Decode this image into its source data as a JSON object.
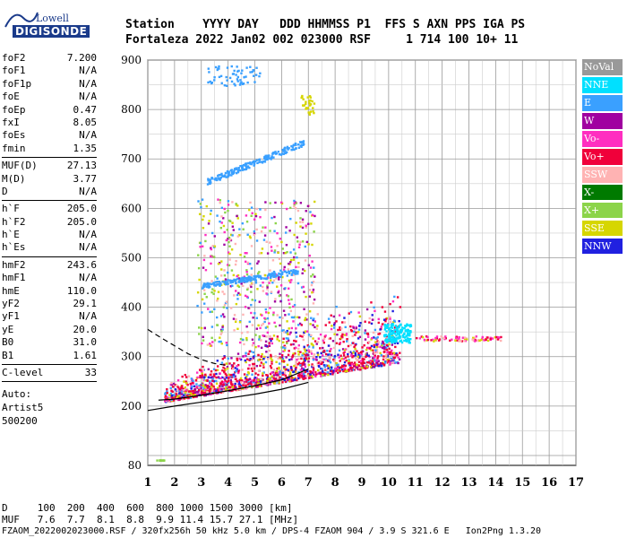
{
  "logo": {
    "line1": "Lowell",
    "line2": "DIGISONDE"
  },
  "header": {
    "line1": "Station    YYYY DAY   DDD HHMMSS P1  FFS S AXN PPS IGA PS",
    "line2": "Fortaleza 2022 Jan02 002 023000 RSF     1 714 100 10+ 11"
  },
  "params": {
    "group1": [
      {
        "name": "foF2",
        "value": "7.200"
      },
      {
        "name": "foF1",
        "value": "N/A"
      },
      {
        "name": "foF1p",
        "value": "N/A"
      },
      {
        "name": "foE",
        "value": "N/A"
      },
      {
        "name": "foEp",
        "value": "0.47"
      },
      {
        "name": "fxI",
        "value": "8.05"
      },
      {
        "name": "foEs",
        "value": "N/A"
      },
      {
        "name": "fmin",
        "value": "1.35"
      }
    ],
    "group2": [
      {
        "name": "MUF(D)",
        "value": "27.13"
      },
      {
        "name": "M(D)",
        "value": "3.77"
      },
      {
        "name": "D",
        "value": "N/A"
      }
    ],
    "group3": [
      {
        "name": "h`F",
        "value": "205.0"
      },
      {
        "name": "h`F2",
        "value": "205.0"
      },
      {
        "name": "h`E",
        "value": "N/A"
      },
      {
        "name": "h`Es",
        "value": "N/A"
      }
    ],
    "group4": [
      {
        "name": "hmF2",
        "value": "243.6"
      },
      {
        "name": "hmF1",
        "value": "N/A"
      },
      {
        "name": "hmE",
        "value": "110.0"
      },
      {
        "name": "yF2",
        "value": "29.1"
      },
      {
        "name": "yF1",
        "value": "N/A"
      },
      {
        "name": "yE",
        "value": "20.0"
      },
      {
        "name": "B0",
        "value": "31.0"
      },
      {
        "name": "B1",
        "value": "1.61"
      }
    ],
    "group5": [
      {
        "name": "C-level",
        "value": "33"
      }
    ],
    "footer": {
      "line1": "Auto:",
      "line2": "Artist5",
      "line3": "500200"
    }
  },
  "legend": [
    {
      "label": "NoVal",
      "color": "#999999"
    },
    {
      "label": "NNE",
      "color": "#00e0ff"
    },
    {
      "label": "E",
      "color": "#3aa0ff"
    },
    {
      "label": "W",
      "color": "#a000a0"
    },
    {
      "label": "Vo-",
      "color": "#ff2ec0"
    },
    {
      "label": "Vo+",
      "color": "#f0003a"
    },
    {
      "label": "SSW",
      "color": "#ffb3b3"
    },
    {
      "label": "X-",
      "color": "#007a00"
    },
    {
      "label": "X+",
      "color": "#8cd44a"
    },
    {
      "label": "SSE",
      "color": "#d6d600"
    },
    {
      "label": "NNW",
      "color": "#2020e0"
    }
  ],
  "chart_data": {
    "type": "scatter",
    "xlabel": "",
    "ylabel": "",
    "xlim": [
      1,
      17
    ],
    "ylim": [
      80,
      900
    ],
    "x_ticks": [
      1,
      2,
      3,
      4,
      5,
      6,
      7,
      8,
      9,
      10,
      11,
      12,
      13,
      14,
      15,
      16,
      17
    ],
    "y_ticks": [
      80,
      200,
      300,
      400,
      500,
      600,
      700,
      800,
      900
    ],
    "grid": true,
    "profile_curve": {
      "x": [
        1.0,
        2.0,
        3.0,
        4.0,
        5.0,
        6.0,
        7.0
      ],
      "y": [
        191,
        200,
        208,
        216,
        224,
        234,
        248
      ]
    },
    "trace_curve": {
      "x": [
        1.4,
        2.0,
        3.0,
        4.0,
        5.0,
        6.0,
        7.0
      ],
      "y": [
        212,
        214,
        222,
        231,
        241,
        253,
        275
      ]
    },
    "dashed_curve": {
      "x": [
        1.0,
        1.5,
        2.0,
        2.5,
        3.0,
        3.5,
        4.0
      ],
      "y": [
        355,
        338,
        322,
        306,
        294,
        286,
        282
      ]
    }
  },
  "bottom": {
    "line1": "D     100  200  400  600  800 1000 1500 3000 [km]",
    "line2": "MUF   7.6  7.7  8.1  8.8  9.9 11.4 15.7 27.1 [MHz]",
    "line3": "FZAOM_2022002023000.RSF / 320fx256h 50 kHz 5.0 km / DPS-4 FZAOM 904 / 3.9 S 321.6 E   Ion2Png 1.3.20"
  }
}
